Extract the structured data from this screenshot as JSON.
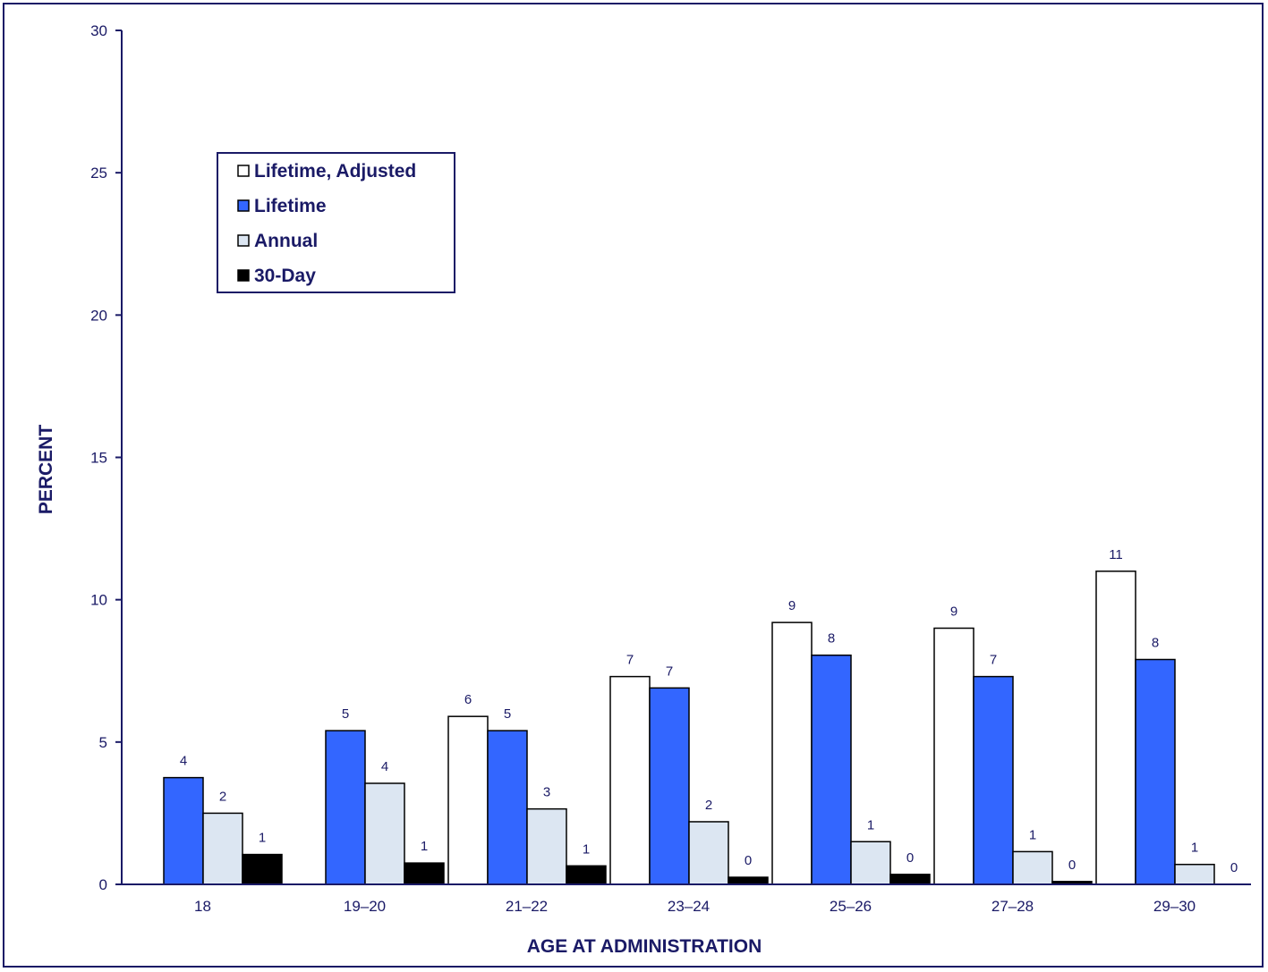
{
  "chart_data": {
    "type": "bar",
    "title": "",
    "xlabel": "AGE AT ADMINISTRATION",
    "ylabel": "PERCENT",
    "ylim": [
      0,
      30
    ],
    "yticks": [
      0,
      5,
      10,
      15,
      20,
      25,
      30
    ],
    "grid": false,
    "legend_position": "upper-left",
    "categories": [
      "18",
      "19–20",
      "21–22",
      "23–24",
      "25–26",
      "27–28",
      "29–30"
    ],
    "series": [
      {
        "name": "Lifetime, Adjusted",
        "color": "#ffffff",
        "values": [
          null,
          null,
          5.9,
          7.3,
          9.2,
          9.0,
          11.0
        ],
        "labels": [
          "",
          "",
          "6",
          "7",
          "9",
          "9",
          "11"
        ]
      },
      {
        "name": "Lifetime",
        "color": "#3366ff",
        "values": [
          3.75,
          5.4,
          5.4,
          6.9,
          8.05,
          7.3,
          7.9
        ],
        "labels": [
          "4",
          "5",
          "5",
          "7",
          "8",
          "7",
          "8"
        ]
      },
      {
        "name": "Annual",
        "color": "#dce6f2",
        "values": [
          2.5,
          3.55,
          2.65,
          2.2,
          1.5,
          1.15,
          0.7
        ],
        "labels": [
          "2",
          "4",
          "3",
          "2",
          "1",
          "1",
          "1"
        ]
      },
      {
        "name": "30-Day",
        "color": "#000000",
        "values": [
          1.05,
          0.75,
          0.65,
          0.25,
          0.35,
          0.1,
          null
        ],
        "labels": [
          "1",
          "1",
          "1",
          "0",
          "0",
          "0",
          "0"
        ]
      }
    ]
  },
  "colors": {
    "axis": "#1a1a66",
    "text": "#1a1a66",
    "bar_outline": "#000000"
  }
}
